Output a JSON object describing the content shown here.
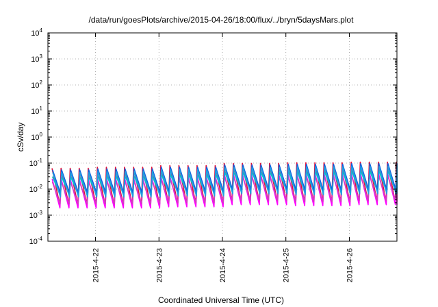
{
  "chart_data": {
    "type": "line",
    "title": "/data/run/goesPlots/archive/2015-04-26/18:00/flux/../bryn/5daysMars.plot",
    "xlabel": "Coordinated Universal Time (UTC)",
    "ylabel": "cSv/day",
    "yscale": "log",
    "ylim": [
      0.0001,
      10000
    ],
    "y_ticks": [
      {
        "base": "10",
        "exp": "-4",
        "value": 0.0001
      },
      {
        "base": "10",
        "exp": "-3",
        "value": 0.001
      },
      {
        "base": "10",
        "exp": "-2",
        "value": 0.01
      },
      {
        "base": "10",
        "exp": "-1",
        "value": 0.1
      },
      {
        "base": "10",
        "exp": "0",
        "value": 1
      },
      {
        "base": "10",
        "exp": "1",
        "value": 10
      },
      {
        "base": "10",
        "exp": "2",
        "value": 100
      },
      {
        "base": "10",
        "exp": "3",
        "value": 1000
      },
      {
        "base": "10",
        "exp": "4",
        "value": 10000
      }
    ],
    "xlim": [
      "2015-04-21 06:00",
      "2015-04-26 18:00"
    ],
    "x_ticks": [
      "2015-4-22",
      "2015-4-23",
      "2015-4-24",
      "2015-4-25",
      "2015-4-26"
    ],
    "grid": true,
    "cycles_per_day": 7,
    "peak_by_day": {
      "2015-04-21": 0.055,
      "2015-04-22": 0.06,
      "2015-04-23": 0.07,
      "2015-04-24": 0.085,
      "2015-04-25": 0.09,
      "2015-04-26": 0.095
    },
    "trough_by_day": {
      "2015-04-21": 0.0045,
      "2015-04-22": 0.0045,
      "2015-04-23": 0.005,
      "2015-04-24": 0.006,
      "2015-04-25": 0.0055,
      "2015-04-26": 0.006
    },
    "series": [
      {
        "color": "#e0103a",
        "peak_factor": 1.15,
        "trough_factor": 0.55
      },
      {
        "color": "#ff00ff",
        "peak_factor": 0.45,
        "trough_factor": 0.42
      },
      {
        "color": "#d040c0",
        "peak_factor": 0.35,
        "trough_factor": 0.6
      },
      {
        "color": "#00c8c8",
        "peak_factor": 0.55,
        "trough_factor": 1.35
      },
      {
        "color": "#1060e0",
        "peak_factor": 1.0,
        "trough_factor": 1.6
      },
      {
        "color": "#20a0e0",
        "peak_factor": 0.8,
        "trough_factor": 1.1
      }
    ]
  }
}
